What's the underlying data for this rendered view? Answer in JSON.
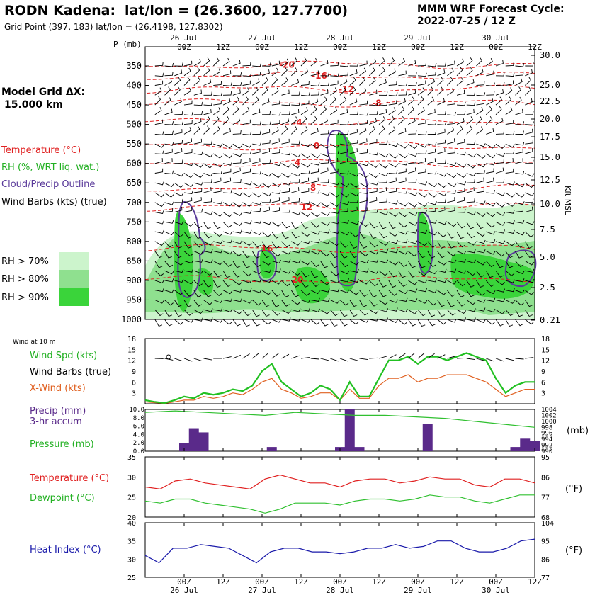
{
  "header": {
    "station": "RODN Kadena:",
    "latlon": "lat/lon = (26.3600, 127.7700)",
    "gridpoint": "Grid Point (397, 183) lat/lon = (26.4198, 127.8302)",
    "model": "MMM WRF Forecast Cycle:",
    "cycle": "2022-07-25 / 12  Z"
  },
  "legend": {
    "grid_title": "Model Grid ΔX:",
    "grid_value": "15.000 km",
    "temperature": "Temperature (°C)",
    "rh": "RH (%, WRT liq. wat.)",
    "cloud": "Cloud/Precip Outline",
    "barbs": "Wind Barbs (kts) (true)",
    "rh70": "RH > 70%",
    "rh80": "RH > 80%",
    "rh90": "RH > 90%",
    "wind10": "Wind at 10 m",
    "wspd": "Wind Spd (kts)",
    "wbarbs": "Wind Barbs (true)",
    "xwind": "X-Wind (kts)",
    "precip1": "Precip (mm)",
    "precip2": "3-hr accum",
    "pres": "Pressure (mb)",
    "temp2": "Temperature (°C)",
    "dew": "Dewpoint (°C)",
    "heat": "Heat Index (°C)",
    "mb": "(mb)",
    "degf": "(°F)",
    "kft": "Kft MSL"
  },
  "colors": {
    "temperature": "#e02020",
    "rh70": "#ccf4cc",
    "rh80": "#8fe08f",
    "rh90": "#3ad43a",
    "cloud": "#5a3a9a",
    "wind": "#22c022",
    "xwind": "#e06020",
    "precip": "#5a2a8a",
    "pressure": "#30c030",
    "heat": "#1a1aaa"
  },
  "chart_data": [
    {
      "type": "heatmap",
      "title": "Time-height cross section",
      "ylabel": "P (mb)",
      "y_ticks": [
        350,
        400,
        450,
        500,
        550,
        600,
        650,
        700,
        750,
        800,
        850,
        900,
        950,
        1000
      ],
      "y2_ticks": [
        "30.0",
        "25.0",
        "22.5",
        "20.0",
        "17.5",
        "15.0",
        "12.5",
        "10.0",
        "7.5",
        "5.0",
        "2.5",
        "0.21"
      ],
      "x_ticks_top": [
        "00Z",
        "12Z",
        "00Z",
        "12Z",
        "00Z",
        "12Z",
        "00Z",
        "12Z",
        "00Z",
        "12Z"
      ],
      "x_dates_top": [
        "26 Jul",
        "27 Jul",
        "28 Jul",
        "29 Jul",
        "30 Jul"
      ],
      "temperature_contours": [
        {
          "label": "-20",
          "p": 347
        },
        {
          "label": "-16",
          "p": 375
        },
        {
          "label": "-12",
          "p": 410
        },
        {
          "label": "-8",
          "p": 445
        },
        {
          "label": "-4",
          "p": 495
        },
        {
          "label": "0",
          "p": 555
        },
        {
          "label": "4",
          "p": 598
        },
        {
          "label": "8",
          "p": 662
        },
        {
          "label": "12",
          "p": 712
        },
        {
          "label": "16",
          "p": 818
        },
        {
          "label": "20",
          "p": 898
        }
      ]
    },
    {
      "type": "line",
      "title": "Wind at 10 m",
      "x": [
        "25/12Z",
        "25/15Z",
        "25/18Z",
        "25/21Z",
        "26/00Z",
        "26/03Z",
        "26/06Z",
        "26/09Z",
        "26/12Z",
        "26/15Z",
        "26/18Z",
        "26/21Z",
        "27/00Z",
        "27/03Z",
        "27/06Z",
        "27/09Z",
        "27/12Z",
        "27/15Z",
        "27/18Z",
        "27/21Z",
        "28/00Z",
        "28/03Z",
        "28/06Z",
        "28/09Z",
        "28/12Z",
        "28/15Z",
        "28/18Z",
        "28/21Z",
        "29/00Z",
        "29/03Z",
        "29/06Z",
        "29/09Z",
        "29/12Z",
        "29/15Z",
        "29/18Z",
        "29/21Z",
        "30/00Z",
        "30/03Z",
        "30/06Z",
        "30/09Z",
        "30/12Z"
      ],
      "series": [
        {
          "name": "Wind Spd (kts)",
          "values": [
            1,
            0.5,
            0.2,
            1,
            2,
            1.5,
            3,
            2.5,
            3,
            4,
            3.5,
            5,
            9,
            11,
            6,
            4,
            2,
            3,
            5,
            4,
            1,
            6,
            2,
            2,
            7,
            12,
            12,
            13,
            11,
            13,
            13,
            12,
            13,
            14,
            13,
            12,
            7,
            3,
            5,
            6,
            6
          ]
        },
        {
          "name": "X-Wind (kts)",
          "values": [
            0.5,
            0.3,
            0.1,
            0.5,
            1,
            1,
            2,
            1.5,
            2,
            3,
            2.5,
            4,
            6,
            7,
            4,
            3,
            1.5,
            2,
            3,
            3,
            1,
            4,
            1.5,
            1.5,
            5,
            7,
            7,
            8,
            6,
            7,
            7,
            8,
            8,
            8,
            7,
            6,
            4,
            2,
            3,
            4,
            4
          ]
        }
      ],
      "ylim": [
        0,
        18
      ],
      "y_ticks": [
        3,
        6,
        9,
        12,
        15,
        18
      ]
    },
    {
      "type": "bar",
      "title": "Precip (mm) 3-hr accum / Pressure (mb)",
      "categories": [
        "26/00Z",
        "26/03Z",
        "26/06Z",
        "27/03Z",
        "28/00Z",
        "28/03Z",
        "28/06Z",
        "29/03Z",
        "30/06Z",
        "30/09Z",
        "30/12Z"
      ],
      "values": [
        2.0,
        5.5,
        4.5,
        1.0,
        1.0,
        10.0,
        1.0,
        6.5,
        1.0,
        3.0,
        2.5
      ],
      "ylim": [
        0,
        10
      ],
      "y_ticks": [
        "0.0",
        "2.0",
        "4.0",
        "6.0",
        "8.0",
        "10.0"
      ],
      "y2_ticks": [
        "990",
        "992",
        "994",
        "996",
        "998",
        "1000",
        "1002",
        "1004"
      ],
      "pressure_values": [
        1003,
        1003.5,
        1003,
        1002.5,
        1002,
        1003,
        1002.5,
        1002,
        1002,
        1001.5,
        1001,
        1000,
        999,
        998
      ]
    },
    {
      "type": "line",
      "title": "Temperature / Dewpoint",
      "series": [
        {
          "name": "Temperature (°C)",
          "values": [
            27.5,
            27,
            29,
            29.5,
            28.5,
            28,
            27.5,
            27,
            29.5,
            30.5,
            29.5,
            28.5,
            28.5,
            27.5,
            29,
            29.5,
            29.5,
            28.5,
            29,
            30,
            29.5,
            29.5,
            28,
            27.5,
            29.5,
            29.5,
            28.5
          ]
        },
        {
          "name": "Dewpoint (°C)",
          "values": [
            24,
            23.5,
            24.5,
            24.5,
            23.5,
            23,
            22.5,
            22,
            21,
            22,
            23.5,
            23.5,
            23.5,
            23,
            24,
            24.5,
            24.5,
            24,
            24.5,
            25.5,
            25,
            25,
            24,
            23.5,
            24.5,
            25.5,
            25.5
          ]
        }
      ],
      "ylim": [
        20,
        35
      ],
      "y_ticks": [
        "20",
        "25",
        "30",
        "35"
      ],
      "y2_ticks": [
        "68",
        "77",
        "86",
        "95"
      ]
    },
    {
      "type": "line",
      "title": "Heat Index",
      "series": [
        {
          "name": "Heat Index (°C)",
          "values": [
            31,
            29,
            33,
            33,
            34,
            33.5,
            33,
            31,
            29,
            32,
            33,
            33,
            32,
            32,
            31.5,
            32,
            33,
            33,
            34,
            33,
            33.5,
            35,
            35,
            33,
            32,
            32,
            33,
            35,
            35.5
          ]
        }
      ],
      "ylim": [
        25,
        40
      ],
      "y_ticks": [
        "25",
        "30",
        "35",
        "40"
      ],
      "y2_ticks": [
        "77",
        "86",
        "95",
        "104"
      ],
      "x_ticks_bottom": [
        "00Z",
        "12Z",
        "00Z",
        "12Z",
        "00Z",
        "12Z",
        "00Z",
        "12Z",
        "00Z",
        "12Z"
      ],
      "x_dates_bottom": [
        "26 Jul",
        "27 Jul",
        "28 Jul",
        "29 Jul",
        "30 Jul"
      ]
    }
  ]
}
